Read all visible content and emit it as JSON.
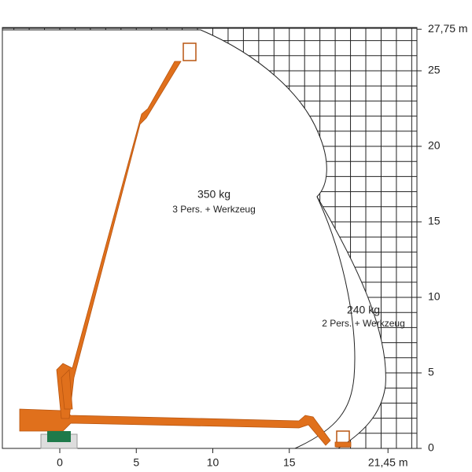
{
  "x_axis": {
    "ticks": [
      0,
      5,
      10,
      15,
      {
        "value": 21.45,
        "label": "21,45 m"
      }
    ]
  },
  "y_axis": {
    "ticks": [
      0,
      5,
      10,
      15,
      20,
      25,
      {
        "value": 27.75,
        "label": "27,75 m"
      }
    ]
  },
  "zones": [
    {
      "load": "350 kg",
      "note": "3 Pers. + Werkzeug"
    },
    {
      "load": "240 kg",
      "note": "2 Pers. + Werkzeug"
    }
  ]
}
